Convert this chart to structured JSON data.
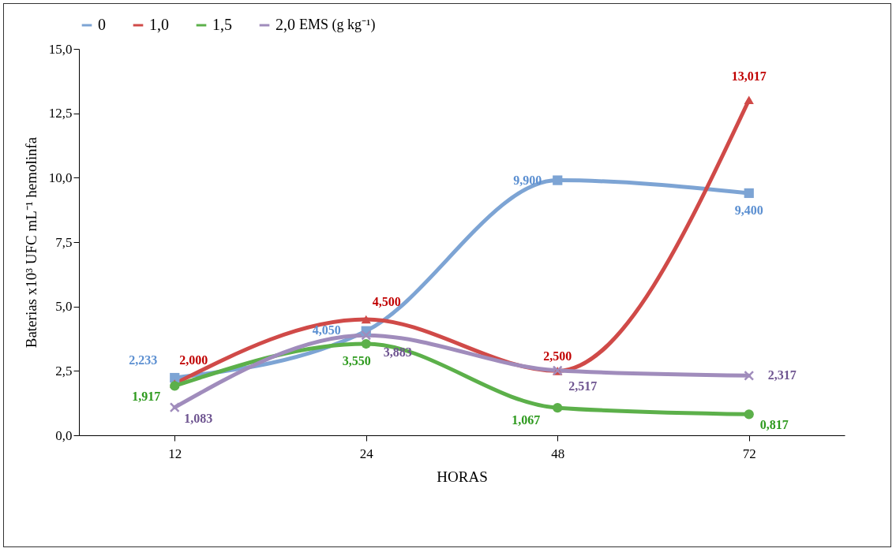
{
  "chart_data": {
    "type": "line",
    "xlabel": "HORAS",
    "ylabel": "Baterias x10³ UFC mL⁻¹ hemolinfa",
    "legend_title": "EMS (g kg⁻¹)",
    "legend": "top",
    "grid": false,
    "categories": [
      "12",
      "24",
      "48",
      "72"
    ],
    "ylim": [
      0,
      15
    ],
    "yticks": [
      {
        "value": 0,
        "label": "0,0"
      },
      {
        "value": 2.5,
        "label": "2,5"
      },
      {
        "value": 5,
        "label": "5,0"
      },
      {
        "value": 7.5,
        "label": "7,5"
      },
      {
        "value": 10,
        "label": "10,0"
      },
      {
        "value": 12.5,
        "label": "12,5"
      },
      {
        "value": 15,
        "label": "15,0"
      }
    ],
    "series": [
      {
        "name": "0",
        "color": "#7da4d4",
        "marker": "square",
        "values": [
          2.233,
          4.05,
          9.9,
          9.4
        ],
        "value_labels": [
          "2,233",
          "4,050",
          "9,900",
          "9,400"
        ]
      },
      {
        "name": "1,0",
        "color": "#d04a48",
        "marker": "triangle",
        "values": [
          2.0,
          4.5,
          2.5,
          13.017
        ],
        "value_labels": [
          "2,000",
          "4,500",
          "2,500",
          "13,017"
        ]
      },
      {
        "name": "1,5",
        "color": "#5cb04a",
        "marker": "circle",
        "values": [
          1.917,
          3.55,
          1.067,
          0.817
        ],
        "value_labels": [
          "1,917",
          "3,550",
          "1,067",
          "0,817"
        ]
      },
      {
        "name": "2,0",
        "color": "#a08cbc",
        "marker": "cross",
        "values": [
          1.083,
          3.883,
          2.517,
          2.317
        ],
        "value_labels": [
          "1,083",
          "3,883",
          "2,517",
          "2,317"
        ]
      }
    ]
  }
}
